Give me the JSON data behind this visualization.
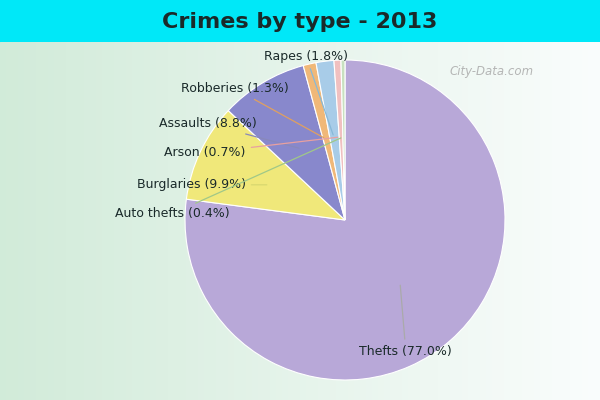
{
  "title": "Crimes by type - 2013",
  "labels": [
    "Thefts",
    "Burglaries",
    "Assaults",
    "Robberies",
    "Rapes",
    "Arson",
    "Auto thefts"
  ],
  "values": [
    77.0,
    9.9,
    8.8,
    1.3,
    1.8,
    0.7,
    0.4
  ],
  "colors": [
    "#b8a8d8",
    "#f0e87a",
    "#8888cc",
    "#f0b878",
    "#a8cce8",
    "#f0c0c0",
    "#c8e0c0"
  ],
  "line_colors": [
    "#999999",
    "#c8d890",
    "#8888bb",
    "#f0a060",
    "#90c0e0",
    "#f0a0a0",
    "#a0c888"
  ],
  "background_top": "#00e8f8",
  "title_color": "#1a2a2a",
  "title_fontsize": 16,
  "label_fontsize": 9,
  "watermark": "City-Data.com"
}
